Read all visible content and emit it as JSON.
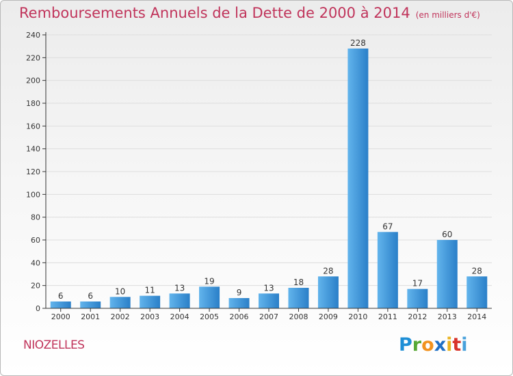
{
  "header": {
    "title": "Remboursements Annuels de la Dette de 2000 à 2014",
    "unit": "(en milliers d'€)"
  },
  "commune": "NIOZELLES",
  "logo": {
    "text": "Proxiti",
    "letters": [
      "P",
      "r",
      "o",
      "x",
      "i",
      "t",
      "i"
    ]
  },
  "colors": {
    "title": "#c0335a",
    "bar_light": "#62b4ec",
    "bar_dark": "#2a7fc8",
    "axis": "#333333",
    "grid": "#dddddd"
  },
  "chart_data": {
    "type": "bar",
    "categories": [
      "2000",
      "2001",
      "2002",
      "2003",
      "2004",
      "2005",
      "2006",
      "2007",
      "2008",
      "2009",
      "2010",
      "2011",
      "2012",
      "2013",
      "2014"
    ],
    "values": [
      6,
      6,
      10,
      11,
      13,
      19,
      9,
      13,
      18,
      28,
      228,
      67,
      17,
      60,
      28
    ],
    "title": "Remboursements Annuels de la Dette de 2000 à 2014",
    "subtitle": "(en milliers d'€)",
    "xlabel": "",
    "ylabel": "",
    "ylim": [
      0,
      240
    ],
    "yticks": [
      0,
      20,
      40,
      60,
      80,
      100,
      120,
      140,
      160,
      180,
      200,
      220,
      240
    ],
    "grid": true,
    "legend": "none"
  }
}
